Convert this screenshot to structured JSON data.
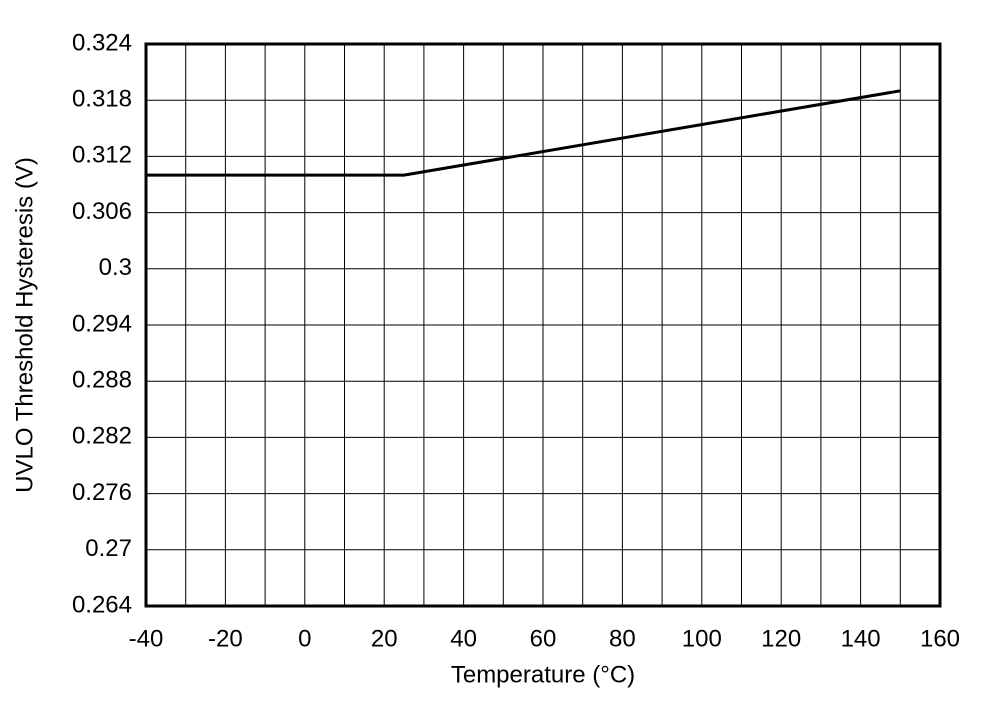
{
  "chart_data": {
    "type": "line",
    "x_label": "Temperature (°C)",
    "y_label": "UVLO Threshold Hysteresis (V)",
    "series": [
      {
        "color": "#000000",
        "x": [
          -40,
          25,
          150
        ],
        "values": [
          0.31,
          0.31,
          0.319
        ]
      }
    ],
    "xlim": [
      -40,
      160
    ],
    "xticks": [
      -40,
      -20,
      0,
      20,
      40,
      60,
      80,
      100,
      120,
      140,
      160
    ],
    "xgrid": [
      -40,
      -30,
      -20,
      -10,
      0,
      10,
      20,
      30,
      40,
      50,
      60,
      70,
      80,
      90,
      100,
      110,
      120,
      130,
      140,
      150,
      160
    ],
    "ylim": [
      0.264,
      0.324
    ],
    "yticks": [
      0.264,
      0.27,
      0.276,
      0.282,
      0.288,
      0.294,
      0.3,
      0.306,
      0.312,
      0.318,
      0.324
    ],
    "grid": true
  }
}
